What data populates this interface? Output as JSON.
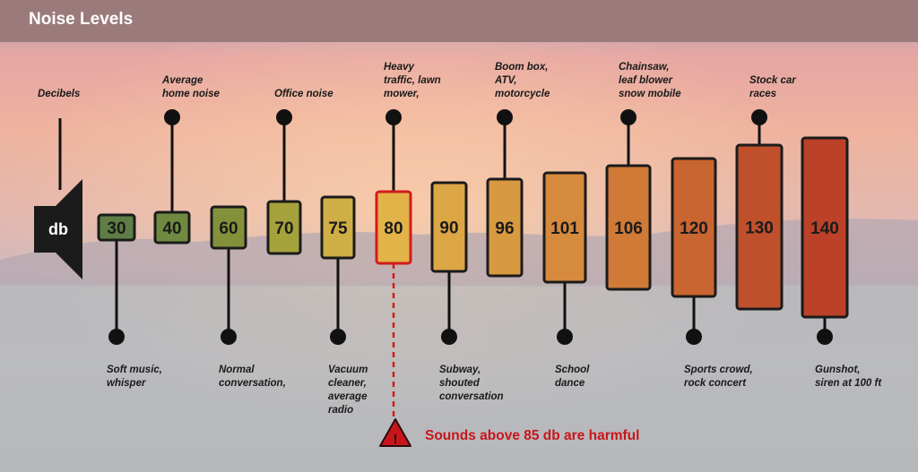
{
  "header": {
    "title": "Noise Levels"
  },
  "speaker": {
    "axis_label": "Decibels",
    "badge": "db",
    "icon": "speaker-icon"
  },
  "levels": [
    {
      "value": "30",
      "label_above": "",
      "label_below": "Soft music,\nwhisper",
      "color": "#5f7d46"
    },
    {
      "value": "40",
      "label_above": "Average\nhome noise",
      "label_below": "",
      "color": "#6f8a40"
    },
    {
      "value": "60",
      "label_above": "",
      "label_below": "Normal\nconversation,",
      "color": "#84913b"
    },
    {
      "value": "70",
      "label_above": "Office noise",
      "label_below": "",
      "color": "#a5a23c"
    },
    {
      "value": "75",
      "label_above": "",
      "label_below": "Vacuum\ncleaner,\naverage\nradio",
      "color": "#cfae45"
    },
    {
      "value": "80",
      "label_above": "Heavy\ntraffic, lawn\nmower,",
      "label_below": "",
      "color": "#e2b348",
      "highlight": true
    },
    {
      "value": "90",
      "label_above": "",
      "label_below": "Subway,\nshouted\nconversation",
      "color": "#dda645"
    },
    {
      "value": "96",
      "label_above": "Boom box,\nATV,\nmotorcycle",
      "label_below": "",
      "color": "#d89a40"
    },
    {
      "value": "101",
      "label_above": "",
      "label_below": "School\ndance",
      "color": "#d68a3d"
    },
    {
      "value": "106",
      "label_above": "Chainsaw,\nleaf blower\nsnow mobile",
      "label_below": "",
      "color": "#d07a37"
    },
    {
      "value": "120",
      "label_above": "",
      "label_below": "Sports crowd,\nrock concert",
      "color": "#c86531"
    },
    {
      "value": "130",
      "label_above": "Stock car\nraces",
      "label_below": "",
      "color": "#c0502c"
    },
    {
      "value": "140",
      "label_above": "",
      "label_below": "Gunshot,\nsiren at 100 ft",
      "color": "#bb4128"
    }
  ],
  "warning": {
    "text": "Sounds above 85 db are harmful",
    "icon": "warning-icon",
    "color": "#c8151b"
  },
  "colors": {
    "header": "#9b7a7b",
    "stem": "#111111",
    "highlight_border": "#d21b1b"
  }
}
